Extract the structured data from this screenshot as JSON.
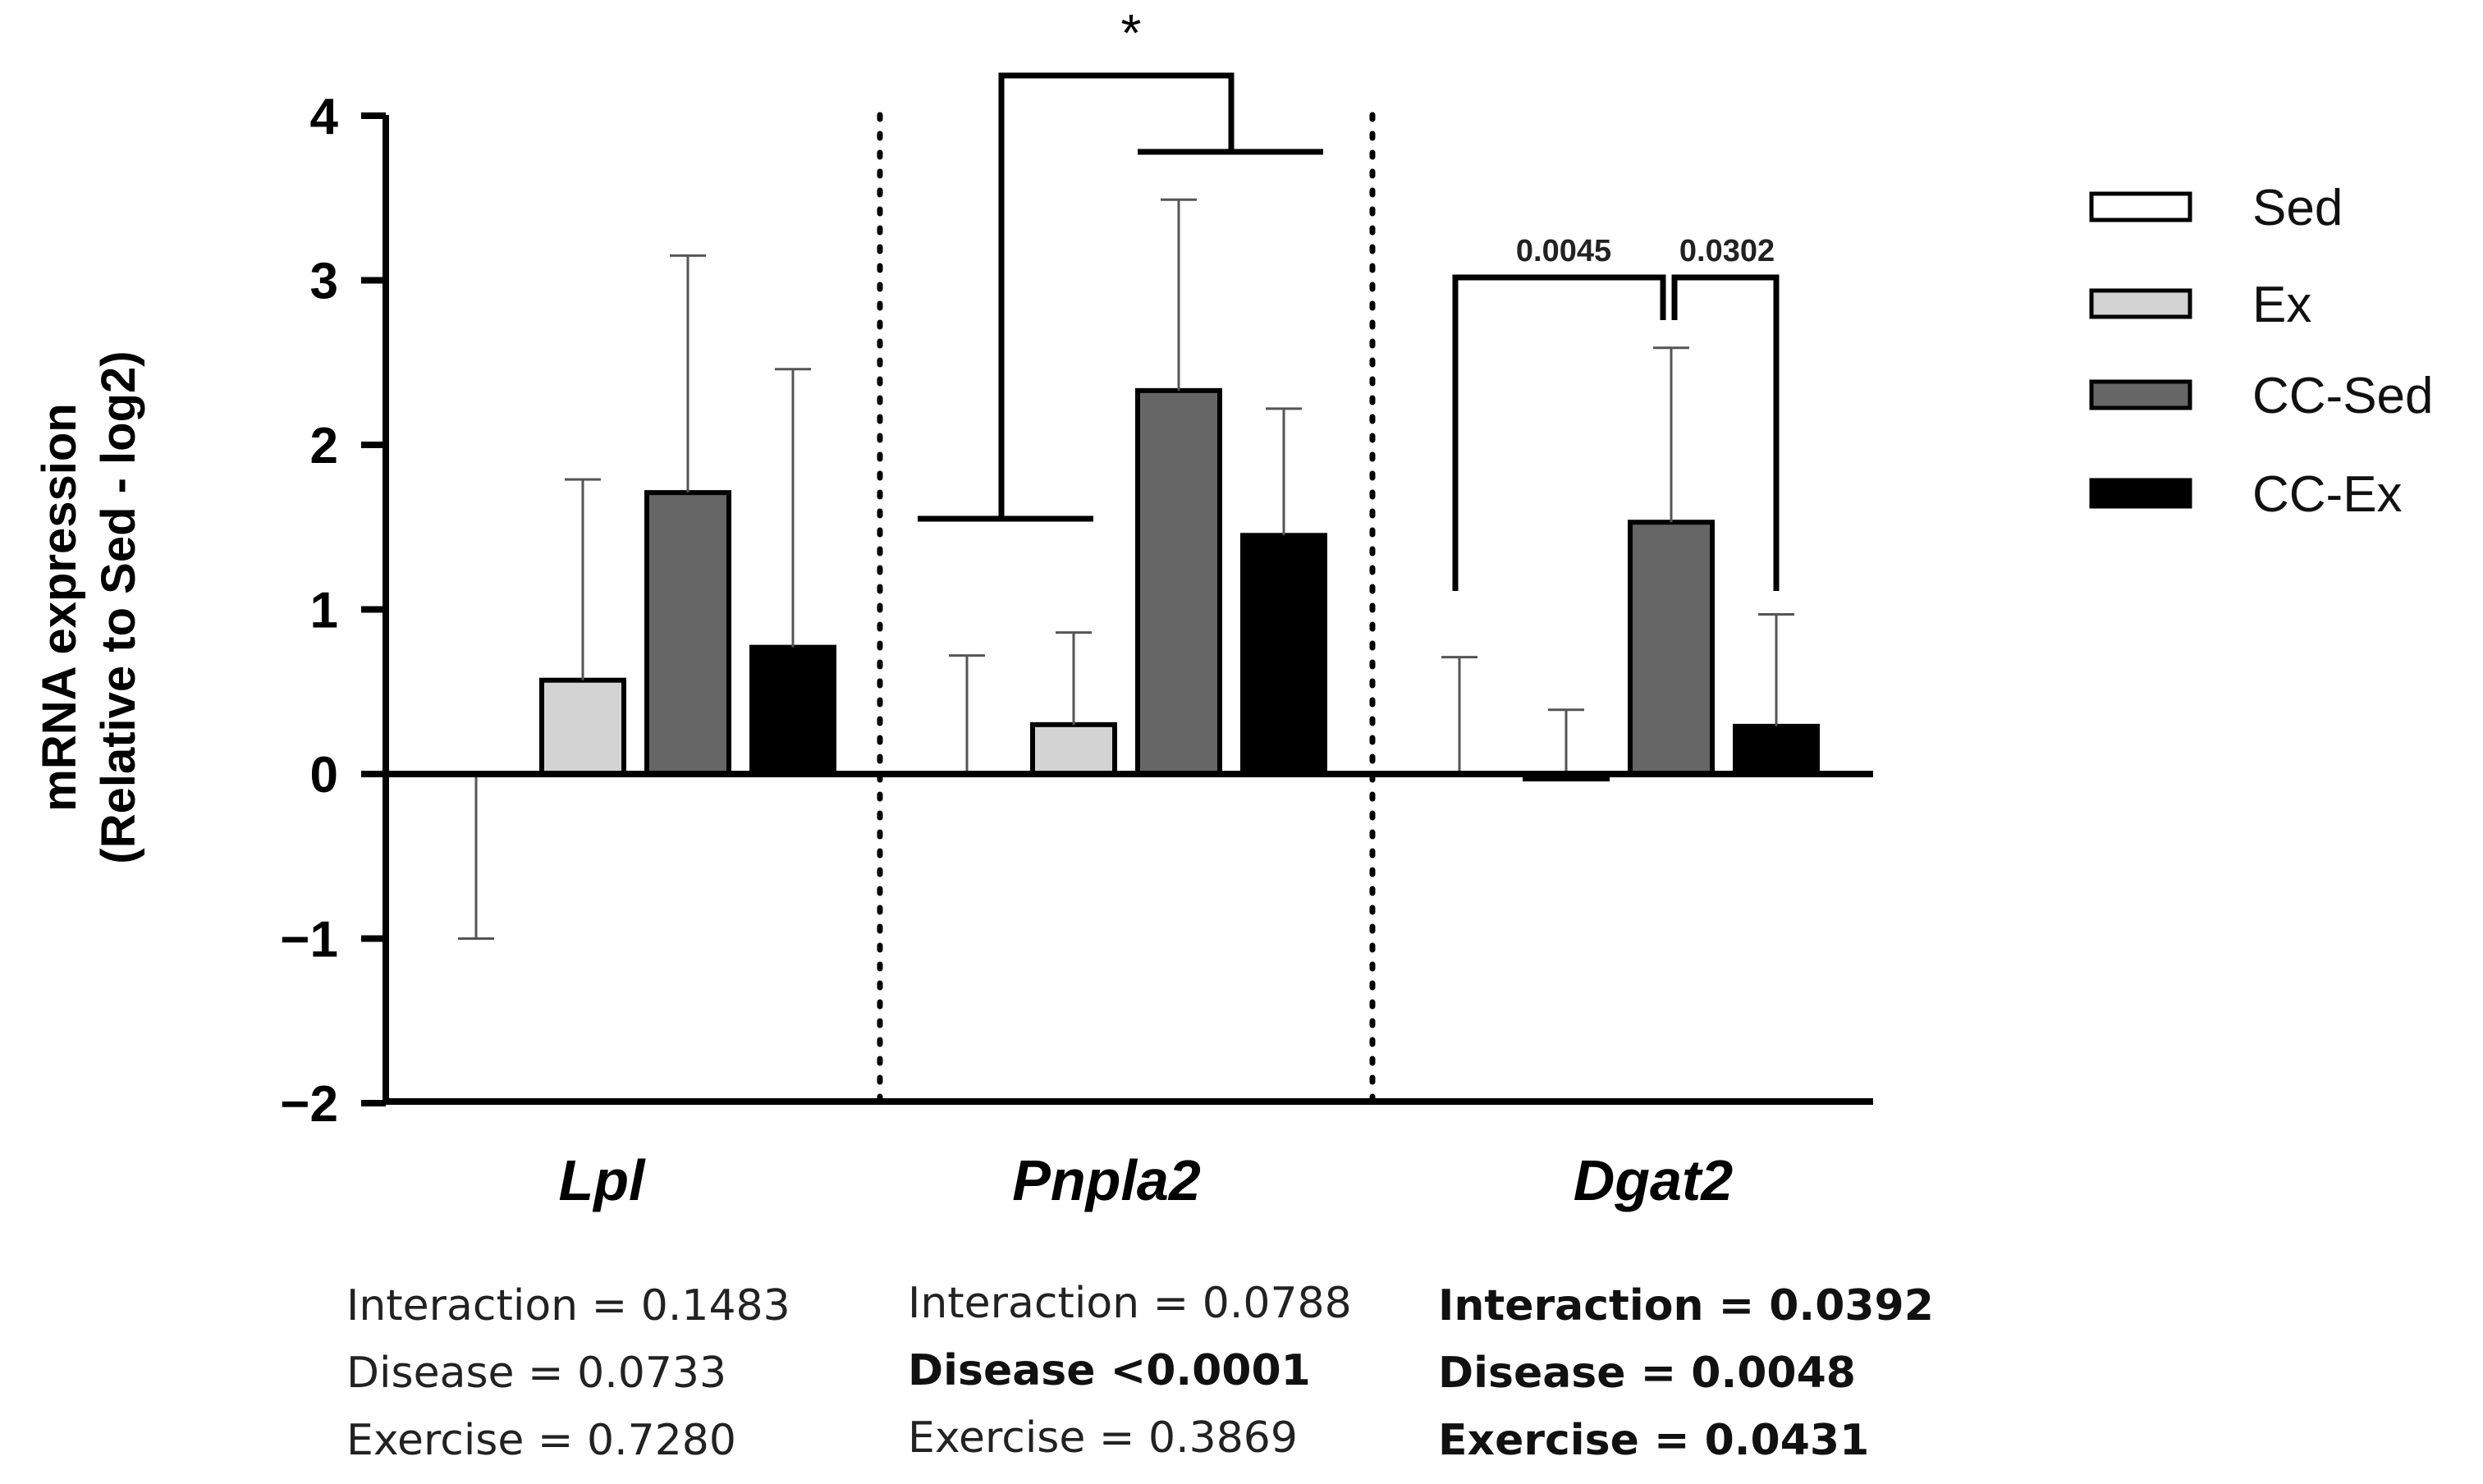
{
  "chart_data": {
    "type": "bar",
    "ylabel_line1": "mRNA expression",
    "ylabel_line2": "(Relative to Sed - log2)",
    "ylim": [
      -2,
      4
    ],
    "yticks": [
      {
        "value": 4,
        "label": "4"
      },
      {
        "value": 3,
        "label": "3"
      },
      {
        "value": 2,
        "label": "2"
      },
      {
        "value": 1,
        "label": "1"
      },
      {
        "value": 0,
        "label": "0"
      },
      {
        "value": -1,
        "label": "−1"
      },
      {
        "value": -2,
        "label": "−2"
      }
    ],
    "categories": [
      "Lpl",
      "Pnpla2",
      "Dgat2"
    ],
    "series": [
      {
        "name": "Sed",
        "color": "#ffffff",
        "values": [
          0,
          0,
          0
        ],
        "err_upper": [
          null,
          0.72,
          0.71
        ],
        "err_lower": [
          -1.0,
          null,
          null
        ]
      },
      {
        "name": "Ex",
        "color": "#d3d3d3",
        "values": [
          0.57,
          0.3,
          -0.03
        ],
        "err_upper": [
          1.79,
          0.86,
          0.39
        ],
        "err_lower": [
          null,
          null,
          null
        ]
      },
      {
        "name": "CC-Sed",
        "color": "#666666",
        "values": [
          1.71,
          2.33,
          1.53
        ],
        "err_upper": [
          3.15,
          3.49,
          2.59
        ],
        "err_lower": [
          null,
          null,
          null
        ]
      },
      {
        "name": "CC-Ex",
        "color": "#000000",
        "values": [
          0.77,
          1.45,
          0.29
        ],
        "err_upper": [
          2.46,
          2.22,
          0.97
        ],
        "err_lower": [
          null,
          null,
          null
        ]
      }
    ],
    "annotations": {
      "pnpla2_star": "*",
      "dgat2_p1": "0.0045",
      "dgat2_p2": "0.0302"
    }
  },
  "stats": {
    "lpl": {
      "interaction": "Interaction = 0.1483",
      "disease": "Disease = 0.0733",
      "exercise": "Exercise = 0.7280"
    },
    "pnpla2": {
      "interaction": "Interaction = 0.0788",
      "disease": "Disease <0.0001",
      "exercise": "Exercise = 0.3869"
    },
    "dgat2": {
      "interaction": "Interaction = 0.0392",
      "disease": "Disease = 0.0048",
      "exercise": "Exercise = 0.0431"
    }
  }
}
